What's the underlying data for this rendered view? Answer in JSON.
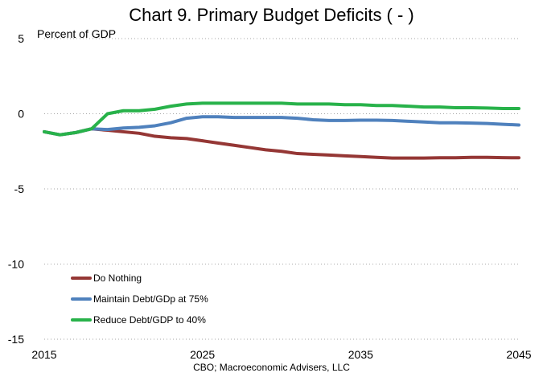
{
  "chart_data": {
    "type": "line",
    "title": "Chart 9. Primary Budget Deficits ( - )",
    "ylabel": "Percent of GDP",
    "xlabel": "",
    "note": "CBO; Macroeconomic Advisers, LLC",
    "xlim": [
      2015,
      2045
    ],
    "ylim": [
      -15,
      5
    ],
    "x_ticks": [
      2015,
      2025,
      2035,
      2045
    ],
    "y_ticks": [
      5,
      0,
      -5,
      -10,
      -15
    ],
    "grid": "horizontal dotted",
    "legend_position": "lower-left",
    "x": [
      2015,
      2016,
      2017,
      2018,
      2019,
      2020,
      2021,
      2022,
      2023,
      2024,
      2025,
      2026,
      2027,
      2028,
      2029,
      2030,
      2031,
      2032,
      2033,
      2034,
      2035,
      2036,
      2037,
      2038,
      2039,
      2040,
      2041,
      2042,
      2043,
      2044,
      2045
    ],
    "series": [
      {
        "name": "Do Nothing",
        "color": "#953735",
        "values": [
          -1.2,
          -1.4,
          -1.25,
          -1.0,
          -1.1,
          -1.2,
          -1.3,
          -1.5,
          -1.6,
          -1.65,
          -1.8,
          -1.95,
          -2.1,
          -2.25,
          -2.4,
          -2.5,
          -2.65,
          -2.7,
          -2.75,
          -2.8,
          -2.85,
          -2.9,
          -2.95,
          -2.95,
          -2.95,
          -2.93,
          -2.93,
          -2.9,
          -2.9,
          -2.92,
          -2.93
        ]
      },
      {
        "name": "Maintain Debt/GDp at 75%",
        "color": "#4F81BD",
        "values": [
          -1.2,
          -1.4,
          -1.25,
          -1.0,
          -1.05,
          -0.95,
          -0.9,
          -0.8,
          -0.6,
          -0.3,
          -0.2,
          -0.2,
          -0.25,
          -0.25,
          -0.25,
          -0.25,
          -0.3,
          -0.4,
          -0.45,
          -0.45,
          -0.43,
          -0.43,
          -0.45,
          -0.5,
          -0.55,
          -0.6,
          -0.6,
          -0.62,
          -0.65,
          -0.7,
          -0.75
        ]
      },
      {
        "name": "Reduce Debt/GDP to 40%",
        "color": "#28B24A",
        "values": [
          -1.2,
          -1.4,
          -1.25,
          -1.0,
          0.0,
          0.2,
          0.2,
          0.3,
          0.5,
          0.65,
          0.7,
          0.7,
          0.7,
          0.7,
          0.7,
          0.7,
          0.65,
          0.65,
          0.65,
          0.6,
          0.6,
          0.55,
          0.55,
          0.5,
          0.45,
          0.45,
          0.4,
          0.4,
          0.38,
          0.35,
          0.35
        ]
      }
    ]
  }
}
